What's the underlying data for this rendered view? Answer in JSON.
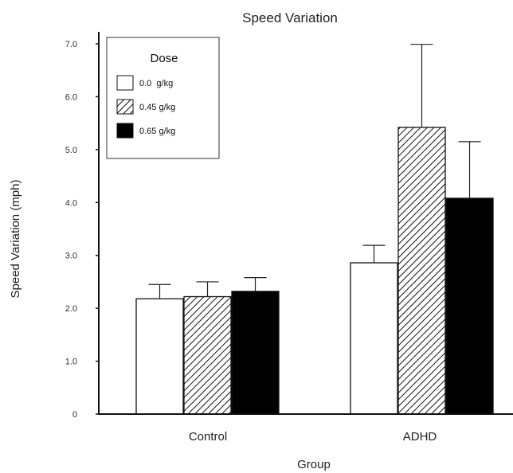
{
  "chart_data": {
    "type": "bar",
    "title": "Speed Variation",
    "xlabel": "Group",
    "ylabel": "Speed Variation (mph)",
    "categories": [
      "Control",
      "ADHD"
    ],
    "ylim": [
      0,
      7.0
    ],
    "y_ticks": [
      "0",
      "1.0",
      "2.0",
      "3.0",
      "4.0",
      "5.0",
      "6.0",
      "7.0"
    ],
    "legend": {
      "title": "Dose",
      "position": "top-left"
    },
    "series": [
      {
        "name": "0.0  g/kg",
        "pattern": "white",
        "values": [
          2.18,
          2.86
        ],
        "errors": [
          0.27,
          0.33
        ]
      },
      {
        "name": "0.45 g/kg",
        "pattern": "hatched",
        "values": [
          2.22,
          5.42
        ],
        "errors": [
          0.28,
          1.57
        ]
      },
      {
        "name": "0.65 g/kg",
        "pattern": "black",
        "values": [
          2.32,
          4.08
        ],
        "errors": [
          0.26,
          1.07
        ]
      }
    ]
  }
}
